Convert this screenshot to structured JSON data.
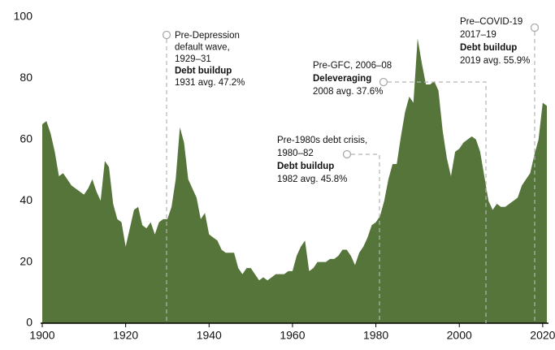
{
  "chart_data": {
    "type": "area",
    "color": "#56753a",
    "x": [
      1900,
      1901,
      1902,
      1903,
      1904,
      1905,
      1906,
      1907,
      1908,
      1909,
      1910,
      1911,
      1912,
      1913,
      1914,
      1915,
      1916,
      1917,
      1918,
      1919,
      1920,
      1921,
      1922,
      1923,
      1924,
      1925,
      1926,
      1927,
      1928,
      1929,
      1930,
      1931,
      1932,
      1933,
      1934,
      1935,
      1936,
      1937,
      1938,
      1939,
      1940,
      1941,
      1942,
      1943,
      1944,
      1945,
      1946,
      1947,
      1948,
      1949,
      1950,
      1951,
      1952,
      1953,
      1954,
      1955,
      1956,
      1957,
      1958,
      1959,
      1960,
      1961,
      1962,
      1963,
      1964,
      1965,
      1966,
      1967,
      1968,
      1969,
      1970,
      1971,
      1972,
      1973,
      1974,
      1975,
      1976,
      1977,
      1978,
      1979,
      1980,
      1981,
      1982,
      1983,
      1984,
      1985,
      1986,
      1987,
      1988,
      1989,
      1990,
      1991,
      1992,
      1993,
      1994,
      1995,
      1996,
      1997,
      1998,
      1999,
      2000,
      2001,
      2002,
      2003,
      2004,
      2005,
      2006,
      2007,
      2008,
      2009,
      2010,
      2011,
      2012,
      2013,
      2014,
      2015,
      2016,
      2017,
      2018,
      2019,
      2020,
      2021
    ],
    "values": [
      65,
      66,
      62,
      56,
      48,
      49,
      47,
      45,
      44,
      43,
      42,
      44,
      47,
      43,
      40,
      53,
      51,
      39,
      34,
      33,
      25,
      31,
      37,
      38,
      32,
      31,
      33,
      29,
      33,
      34,
      34,
      38,
      47,
      64,
      59,
      47,
      44,
      41,
      34,
      36,
      29,
      28,
      27,
      24,
      23,
      23,
      23,
      18,
      16,
      18,
      18,
      16,
      14,
      15,
      14,
      15,
      16,
      16,
      16,
      17,
      17,
      22,
      25,
      27,
      17,
      18,
      20,
      20,
      20,
      21,
      21,
      22,
      24,
      24,
      22,
      19,
      23,
      25,
      28,
      32,
      33,
      35,
      40,
      47,
      52,
      52,
      61,
      69,
      74,
      72,
      93,
      85,
      78,
      78,
      79,
      76,
      63,
      54,
      48,
      56,
      57,
      59,
      60,
      61,
      60,
      56,
      48,
      40,
      37,
      39,
      38,
      38,
      39,
      40,
      41,
      45,
      47,
      49,
      55,
      60,
      72,
      71
    ],
    "xlim": [
      1900,
      2021
    ],
    "xticks": [
      1900,
      1920,
      1940,
      1960,
      1980,
      2000,
      2020
    ],
    "ylim": [
      0,
      100
    ],
    "yticks": [
      0,
      20,
      40,
      60,
      80,
      100
    ],
    "annotations": [
      {
        "lines": [
          "Pre-Depression",
          "default wave,",
          "1929–31",
          "Debt buildup",
          "1931 avg. 47.2%"
        ]
      },
      {
        "lines": [
          "Pre-1980s debt crisis,",
          "1980–82",
          "Debt buildup",
          "1982 avg. 45.8%"
        ]
      },
      {
        "lines": [
          "Pre-GFC, 2006–08",
          "Deleveraging",
          "2008 avg. 37.6%"
        ]
      },
      {
        "lines": [
          "Pre–COVID-19",
          "2017–19",
          "Debt buildup",
          "2019 avg. 55.9%"
        ]
      }
    ]
  }
}
